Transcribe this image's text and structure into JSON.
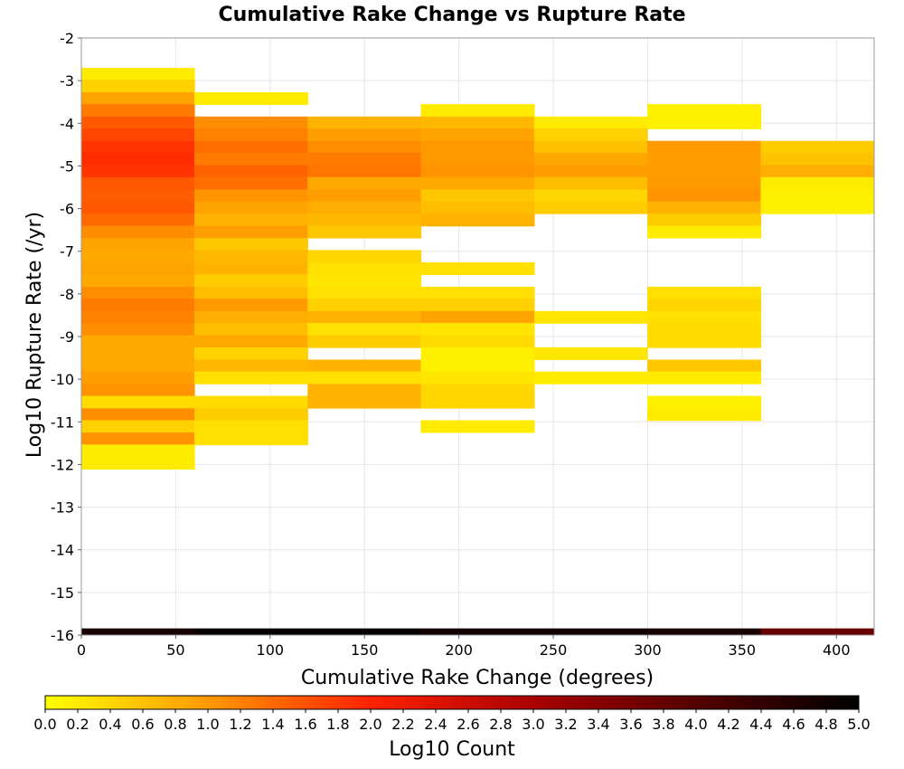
{
  "chart_data": {
    "type": "heatmap",
    "title": "Cumulative Rake Change vs Rupture Rate",
    "xlabel": "Cumulative Rake Change (degrees)",
    "ylabel": "Log10 Rupture Rate (/yr)",
    "xlim": [
      0,
      420
    ],
    "ylim": [
      -16,
      -2
    ],
    "xticks": [
      0,
      50,
      100,
      150,
      200,
      250,
      300,
      350,
      400
    ],
    "yticks": [
      -2,
      -3,
      -4,
      -5,
      -6,
      -7,
      -8,
      -9,
      -10,
      -11,
      -12,
      -13,
      -14,
      -15,
      -16
    ],
    "grid": true,
    "x_bin_width": 60,
    "y_bin_height": 0.285,
    "colorbar": {
      "label": "Log10 Count",
      "min": 0.0,
      "max": 5.0,
      "ticks": [
        "0.0",
        "0.2",
        "0.4",
        "0.6",
        "0.8",
        "1.0",
        "1.2",
        "1.4",
        "1.6",
        "1.8",
        "2.0",
        "2.2",
        "2.4",
        "2.6",
        "2.8",
        "3.0",
        "3.2",
        "3.4",
        "3.6",
        "3.8",
        "4.0",
        "4.2",
        "4.4",
        "4.6",
        "4.8",
        "5.0"
      ],
      "colors": [
        "#ffff00",
        "#ff9900",
        "#ff2200",
        "#aa0000",
        "#550000",
        "#000000"
      ]
    },
    "columns": [
      {
        "x_start": 0,
        "cells": [
          [
            -2.85,
            0.2
          ],
          [
            -3.13,
            0.45
          ],
          [
            -3.42,
            0.9
          ],
          [
            -3.7,
            1.25
          ],
          [
            -3.99,
            1.55
          ],
          [
            -4.27,
            1.7
          ],
          [
            -4.56,
            1.85
          ],
          [
            -4.84,
            1.92
          ],
          [
            -5.13,
            1.85
          ],
          [
            -5.41,
            1.55
          ],
          [
            -5.7,
            1.5
          ],
          [
            -5.98,
            1.55
          ],
          [
            -6.27,
            1.4
          ],
          [
            -6.55,
            1.1
          ],
          [
            -6.84,
            0.9
          ],
          [
            -7.12,
            0.85
          ],
          [
            -7.41,
            0.9
          ],
          [
            -7.69,
            0.85
          ],
          [
            -7.98,
            1.1
          ],
          [
            -8.26,
            1.25
          ],
          [
            -8.55,
            1.2
          ],
          [
            -8.83,
            1.1
          ],
          [
            -9.12,
            0.85
          ],
          [
            -9.4,
            0.85
          ],
          [
            -9.69,
            0.85
          ],
          [
            -9.97,
            0.95
          ],
          [
            -10.26,
            1.05
          ],
          [
            -10.54,
            0.35
          ],
          [
            -10.83,
            1.1
          ],
          [
            -11.11,
            0.45
          ],
          [
            -11.4,
            1.05
          ],
          [
            -11.68,
            0.2
          ],
          [
            -11.97,
            0.2
          ]
        ]
      },
      {
        "x_start": 60,
        "cells": [
          [
            -3.42,
            0.2
          ],
          [
            -3.99,
            1.1
          ],
          [
            -4.27,
            1.2
          ],
          [
            -4.56,
            1.35
          ],
          [
            -4.84,
            1.25
          ],
          [
            -5.13,
            1.45
          ],
          [
            -5.41,
            1.35
          ],
          [
            -5.7,
            1.05
          ],
          [
            -5.98,
            0.9
          ],
          [
            -6.27,
            0.75
          ],
          [
            -6.55,
            0.95
          ],
          [
            -6.84,
            0.55
          ],
          [
            -7.12,
            0.7
          ],
          [
            -7.41,
            0.75
          ],
          [
            -7.69,
            0.5
          ],
          [
            -7.98,
            0.65
          ],
          [
            -8.26,
            1.0
          ],
          [
            -8.55,
            0.8
          ],
          [
            -8.83,
            0.65
          ],
          [
            -9.12,
            0.85
          ],
          [
            -9.4,
            0.45
          ],
          [
            -9.69,
            0.7
          ],
          [
            -9.97,
            0.3
          ],
          [
            -10.54,
            0.35
          ],
          [
            -10.83,
            0.5
          ],
          [
            -11.11,
            0.3
          ],
          [
            -11.4,
            0.3
          ]
        ]
      },
      {
        "x_start": 120,
        "cells": [
          [
            -3.99,
            0.75
          ],
          [
            -4.27,
            0.95
          ],
          [
            -4.56,
            1.1
          ],
          [
            -4.84,
            1.25
          ],
          [
            -5.13,
            1.3
          ],
          [
            -5.41,
            0.85
          ],
          [
            -5.7,
            0.95
          ],
          [
            -5.98,
            0.8
          ],
          [
            -6.27,
            0.7
          ],
          [
            -6.55,
            0.55
          ],
          [
            -7.12,
            0.4
          ],
          [
            -7.41,
            0.3
          ],
          [
            -7.69,
            0.25
          ],
          [
            -7.98,
            0.3
          ],
          [
            -8.26,
            0.45
          ],
          [
            -8.55,
            0.75
          ],
          [
            -8.83,
            0.3
          ],
          [
            -9.12,
            0.5
          ],
          [
            -9.69,
            0.75
          ],
          [
            -9.97,
            0.3
          ],
          [
            -10.26,
            0.75
          ],
          [
            -10.54,
            0.75
          ]
        ]
      },
      {
        "x_start": 180,
        "cells": [
          [
            -3.7,
            0.2
          ],
          [
            -3.99,
            0.7
          ],
          [
            -4.27,
            0.9
          ],
          [
            -4.56,
            1.0
          ],
          [
            -4.84,
            1.0
          ],
          [
            -5.13,
            1.05
          ],
          [
            -5.41,
            0.85
          ],
          [
            -5.7,
            0.55
          ],
          [
            -5.98,
            0.65
          ],
          [
            -6.27,
            0.75
          ],
          [
            -7.41,
            0.3
          ],
          [
            -7.98,
            0.3
          ],
          [
            -8.26,
            0.45
          ],
          [
            -8.55,
            0.9
          ],
          [
            -8.83,
            0.25
          ],
          [
            -9.12,
            0.35
          ],
          [
            -9.4,
            0.15
          ],
          [
            -9.69,
            0.15
          ],
          [
            -9.97,
            0.25
          ],
          [
            -10.26,
            0.4
          ],
          [
            -10.54,
            0.4
          ],
          [
            -11.11,
            0.2
          ]
        ]
      },
      {
        "x_start": 240,
        "cells": [
          [
            -3.99,
            0.2
          ],
          [
            -4.27,
            0.45
          ],
          [
            -4.56,
            0.6
          ],
          [
            -4.84,
            0.85
          ],
          [
            -5.13,
            0.95
          ],
          [
            -5.41,
            0.65
          ],
          [
            -5.7,
            0.4
          ],
          [
            -5.98,
            0.5
          ],
          [
            -8.55,
            0.25
          ],
          [
            -9.4,
            0.25
          ],
          [
            -9.97,
            0.2
          ]
        ]
      },
      {
        "x_start": 300,
        "cells": [
          [
            -3.7,
            0.15
          ],
          [
            -3.99,
            0.15
          ],
          [
            -4.56,
            1.0
          ],
          [
            -4.84,
            0.95
          ],
          [
            -5.13,
            0.95
          ],
          [
            -5.41,
            1.0
          ],
          [
            -5.7,
            1.05
          ],
          [
            -5.98,
            0.75
          ],
          [
            -6.27,
            0.5
          ],
          [
            -6.55,
            0.2
          ],
          [
            -7.98,
            0.3
          ],
          [
            -8.26,
            0.4
          ],
          [
            -8.55,
            0.3
          ],
          [
            -8.83,
            0.35
          ],
          [
            -9.12,
            0.35
          ],
          [
            -9.69,
            0.55
          ],
          [
            -9.97,
            0.2
          ],
          [
            -10.54,
            0.15
          ],
          [
            -10.83,
            0.2
          ]
        ]
      },
      {
        "x_start": 360,
        "cells": [
          [
            -4.56,
            0.5
          ],
          [
            -4.84,
            0.6
          ],
          [
            -5.13,
            0.8
          ],
          [
            -5.41,
            0.2
          ],
          [
            -5.7,
            0.15
          ],
          [
            -5.98,
            0.15
          ]
        ]
      }
    ],
    "bottom_row": {
      "y_top": -15.85,
      "y_bottom": -16.0,
      "values": [
        4.7,
        4.9,
        4.9,
        4.8,
        4.8,
        4.7,
        3.8
      ]
    }
  }
}
